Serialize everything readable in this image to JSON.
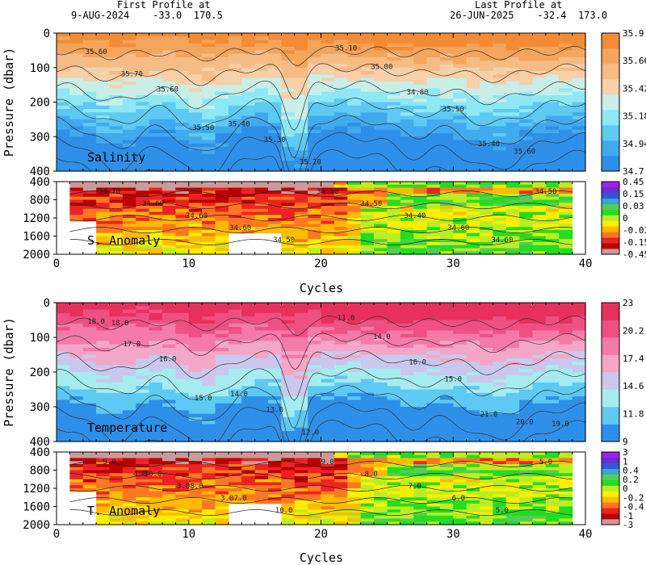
{
  "header": {
    "first_title": "First Profile at",
    "first_info": "9-AUG-2024    -33.0  170.5",
    "last_title": "Last Profile at",
    "last_info": "26-JUN-2025    -32.4  173.0"
  },
  "axes": {
    "xlabel": "Cycles",
    "ylabel": "Pressure (dbar)",
    "x_ticks": [
      "0",
      "10",
      "20",
      "30",
      "40"
    ],
    "y_ticks_upper": [
      "0",
      "100",
      "200",
      "300",
      "400"
    ],
    "y_ticks_lower": [
      "400",
      "800",
      "1200",
      "1600",
      "2000"
    ]
  },
  "colors": {
    "salinity_scale": [
      "#2e8fe8",
      "#41aaee",
      "#5ec9f2",
      "#8ce8f4",
      "#c8eee8",
      "#f6d0a8",
      "#f6bc86",
      "#f4a55c",
      "#f28c36"
    ],
    "temperature_scale": [
      "#2e8fe8",
      "#5ec9f2",
      "#a5ecf0",
      "#c9c8ec",
      "#f3a6c6",
      "#f47aa8",
      "#ef5084",
      "#e8305c"
    ],
    "anomaly_scale": [
      "#a020f0",
      "#6633cc",
      "#3355dd",
      "#33aacc",
      "#55cc55",
      "#22dd22",
      "#bbee22",
      "#ffee00",
      "#ffbb00",
      "#ff7722",
      "#ee2222",
      "#bb0000",
      "#cc9999"
    ]
  },
  "chart_data": [
    {
      "type": "heatmap",
      "panel": "salinity",
      "label": "Salinity",
      "xlim": [
        0,
        40
      ],
      "ylim": [
        400,
        0
      ],
      "colorbar_ticks": [
        "35.9",
        "35.66",
        "35.42",
        "35.18",
        "34.94",
        "34.7"
      ],
      "colorbar_range": [
        34.7,
        35.9
      ],
      "contour_labels": [
        "35.60",
        "35.70",
        "35.60",
        "35.50",
        "35.40",
        "35.30",
        "35.20",
        "35.10",
        "35.00",
        "34.80",
        "35.50",
        "35.40",
        "35.60"
      ],
      "surface_value": 35.6,
      "deep_value": 34.85
    },
    {
      "type": "heatmap",
      "panel": "salinity_anomaly",
      "label": "S. Anomaly",
      "xlim": [
        0,
        40
      ],
      "ylim": [
        2000,
        400
      ],
      "colorbar_ticks": [
        "0.45",
        "0.15",
        "0.03",
        "0",
        "-0.03",
        "-0.15",
        "-0.45"
      ],
      "contour_labels": [
        "34.70",
        "34.60",
        "34.60",
        "34.60",
        "34.50",
        "34.50",
        "34.50",
        "34.40",
        "34.60",
        "34.60",
        "34.50"
      ]
    },
    {
      "type": "heatmap",
      "panel": "temperature",
      "label": "Temperature",
      "xlim": [
        0,
        40
      ],
      "ylim": [
        400,
        0
      ],
      "colorbar_ticks": [
        "23",
        "20.2",
        "17.4",
        "14.6",
        "11.8",
        "9"
      ],
      "colorbar_range": [
        9,
        23
      ],
      "contour_labels": [
        "18.0",
        "17.0",
        "16.0",
        "15.0",
        "14.0",
        "13.0",
        "12.0",
        "11.0",
        "14.0",
        "16.0",
        "15.0",
        "21.0",
        "20.0",
        "19.0",
        "18.0"
      ],
      "surface_value": 18.5,
      "deep_value": 11
    },
    {
      "type": "heatmap",
      "panel": "temperature_anomaly",
      "label": "T. Anomaly",
      "xlim": [
        0,
        40
      ],
      "ylim": [
        2000,
        400
      ],
      "colorbar_ticks": [
        "3",
        "1",
        "0.4",
        "0.2",
        "0",
        "-0.2",
        "-0.4",
        "-1",
        "-3"
      ],
      "contour_labels": [
        "9.0",
        "10.0",
        "8.0",
        "7.0",
        "10.0",
        "9.0",
        "8.0",
        "7.0",
        "6.0",
        "5.0",
        "5.0",
        "4.0",
        "3.0",
        "3.0"
      ]
    }
  ]
}
